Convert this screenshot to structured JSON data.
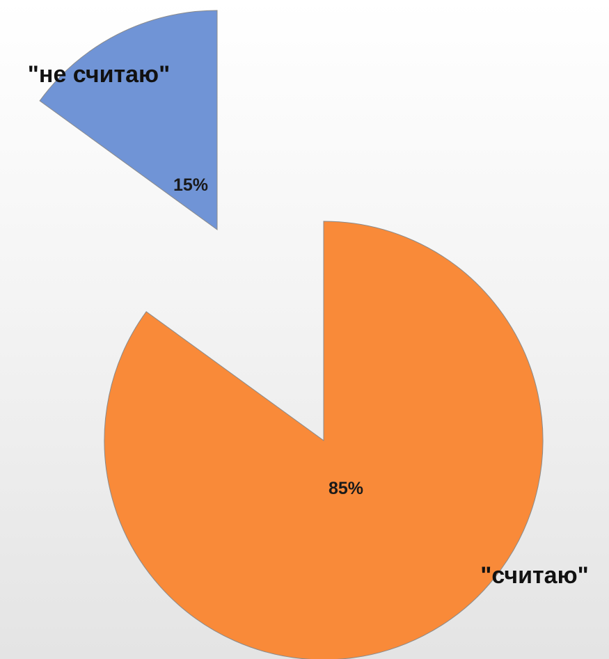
{
  "chart_data": {
    "type": "pie",
    "title": "",
    "categories": [
      "\"не считаю\"",
      "\"считаю\""
    ],
    "values": [
      15,
      85
    ],
    "data_labels": [
      "15%",
      "85%"
    ],
    "colors": [
      "#7094d6",
      "#f98a39"
    ],
    "exploded": true,
    "legend": "none"
  }
}
